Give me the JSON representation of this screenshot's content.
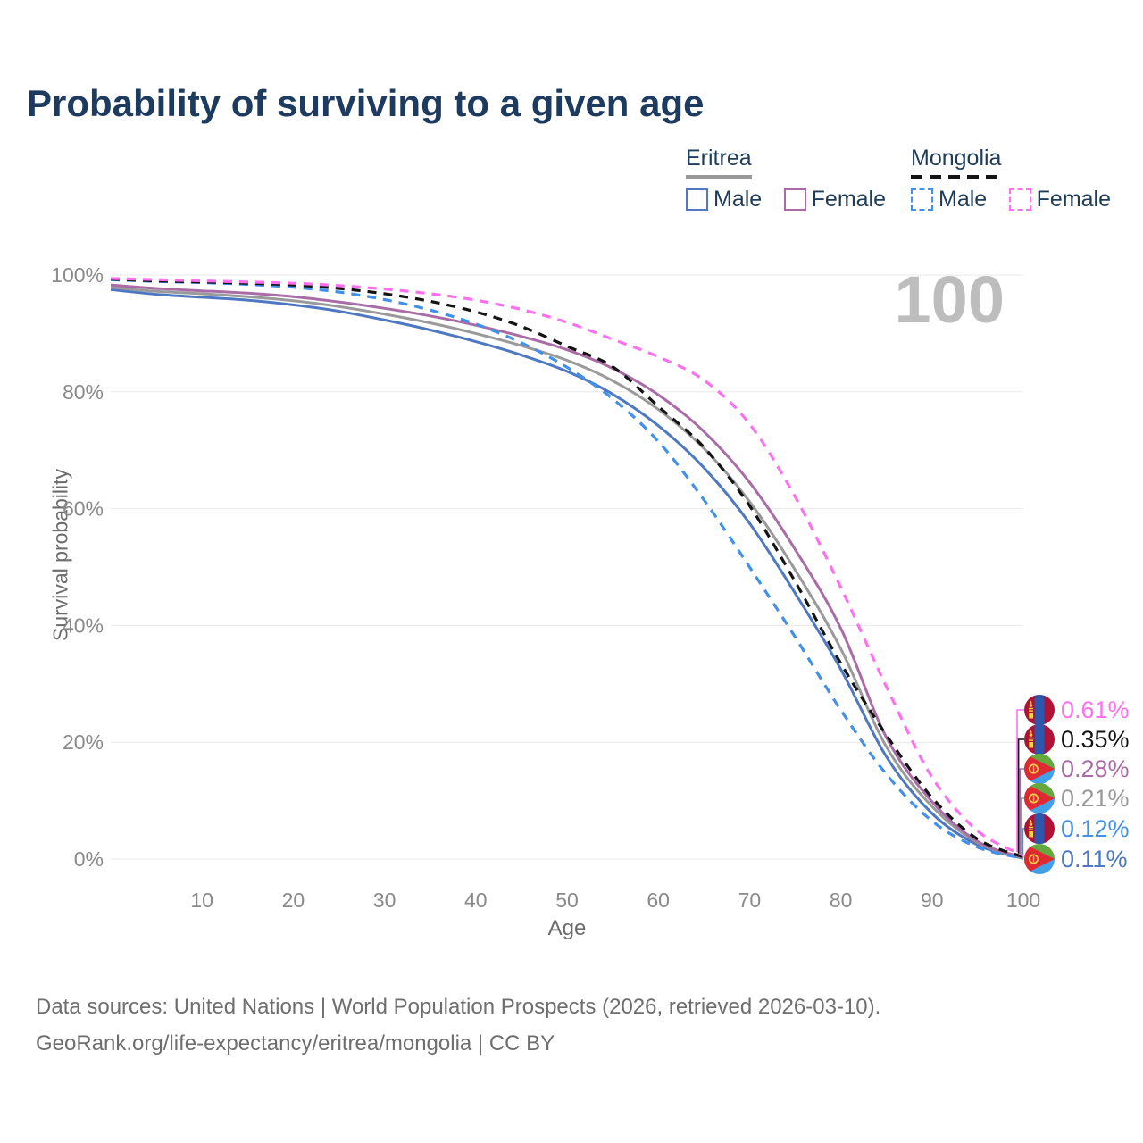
{
  "title": "Probability of surviving to a given age",
  "legend": {
    "groups": [
      {
        "label": "Eritrea",
        "line_style": "solid",
        "line_color": "#9a9a9a",
        "items": [
          {
            "label": "Male",
            "color": "#4e79c2",
            "dashed": false
          },
          {
            "label": "Female",
            "color": "#aa6ca6",
            "dashed": false
          }
        ]
      },
      {
        "label": "Mongolia",
        "line_style": "dashed",
        "line_color": "#141414",
        "items": [
          {
            "label": "Male",
            "color": "#4190ea",
            "dashed": true
          },
          {
            "label": "Female",
            "color": "#ff70f0",
            "dashed": true
          }
        ]
      }
    ]
  },
  "chart_data": {
    "type": "line",
    "title": "Probability of surviving to a given age",
    "xlabel": "Age",
    "ylabel": "Survival probability",
    "xlim": [
      0,
      100
    ],
    "ylim": [
      0,
      100
    ],
    "grid": true,
    "annotation": "100",
    "x_tick_values": [
      10,
      20,
      30,
      40,
      50,
      60,
      70,
      80,
      90,
      100
    ],
    "x_tick_labels": [
      "10",
      "20",
      "30",
      "40",
      "50",
      "60",
      "70",
      "80",
      "90",
      "100"
    ],
    "y_tick_values": [
      0,
      20,
      40,
      60,
      80,
      100
    ],
    "y_tick_labels": [
      "0%",
      "20%",
      "40%",
      "60%",
      "80%",
      "100%"
    ],
    "x": [
      0,
      5,
      10,
      15,
      20,
      25,
      30,
      35,
      40,
      45,
      50,
      55,
      60,
      65,
      70,
      75,
      80,
      85,
      90,
      95,
      100
    ],
    "series": [
      {
        "name": "Mongolia Female",
        "country": "Mongolia",
        "sex": "Female",
        "color": "#ff70f0",
        "dashed": true,
        "z": 6,
        "end_label": "0.61%",
        "values": [
          99.4,
          99.2,
          99.0,
          98.8,
          98.6,
          98.2,
          97.6,
          96.8,
          95.7,
          94.1,
          91.9,
          89.0,
          86.0,
          82.0,
          74.5,
          62.0,
          46.5,
          29.5,
          14.0,
          4.8,
          0.61
        ]
      },
      {
        "name": "Mongolia Both sexes",
        "country": "Mongolia",
        "sex": "Both",
        "color": "#141414",
        "dashed": true,
        "z": 5,
        "end_label": "0.35%",
        "values": [
          99.3,
          99.0,
          98.8,
          98.6,
          98.3,
          97.7,
          96.8,
          95.5,
          93.7,
          91.2,
          87.8,
          84.3,
          77.5,
          70.5,
          60.5,
          47.5,
          33.5,
          21.2,
          10.5,
          3.4,
          0.35
        ]
      },
      {
        "name": "Eritrea Female",
        "country": "Eritrea",
        "sex": "Female",
        "color": "#aa6ca6",
        "dashed": false,
        "z": 3,
        "end_label": "0.28%",
        "values": [
          98.3,
          97.7,
          97.3,
          96.9,
          96.3,
          95.4,
          94.3,
          93.0,
          91.4,
          89.5,
          87.2,
          84.0,
          79.5,
          73.2,
          64.5,
          53.0,
          39.5,
          20.8,
          9.8,
          3.0,
          0.28
        ]
      },
      {
        "name": "Eritrea Both sexes",
        "country": "Eritrea",
        "sex": "Both",
        "color": "#9a9a9a",
        "dashed": false,
        "z": 2,
        "end_label": "0.21%",
        "values": [
          97.9,
          97.2,
          96.8,
          96.3,
          95.6,
          94.6,
          93.3,
          91.8,
          90.0,
          87.9,
          85.4,
          81.9,
          77.0,
          70.3,
          61.2,
          49.5,
          36.0,
          19.2,
          9.0,
          2.8,
          0.21
        ]
      },
      {
        "name": "Mongolia Male",
        "country": "Mongolia",
        "sex": "Male",
        "color": "#4190ea",
        "dashed": true,
        "z": 4,
        "end_label": "0.12%",
        "values": [
          99.2,
          98.9,
          98.7,
          98.4,
          97.9,
          97.1,
          95.8,
          94.0,
          91.6,
          88.4,
          84.2,
          78.8,
          71.5,
          61.5,
          50.0,
          38.0,
          25.5,
          14.5,
          6.5,
          2.0,
          0.12
        ]
      },
      {
        "name": "Eritrea Male",
        "country": "Eritrea",
        "sex": "Male",
        "color": "#4e79c2",
        "dashed": false,
        "z": 1,
        "end_label": "0.11%",
        "values": [
          97.5,
          96.7,
          96.2,
          95.7,
          94.9,
          93.8,
          92.3,
          90.6,
          88.6,
          86.3,
          83.5,
          79.6,
          74.2,
          67.0,
          57.5,
          45.5,
          32.5,
          17.5,
          7.8,
          2.4,
          0.11
        ]
      }
    ]
  },
  "footer": {
    "line1": "Data sources: United Nations | World Population Prospects (2026, retrieved 2026-03-10).",
    "line2": "GeoRank.org/life-expectancy/eritrea/mongolia | CC BY"
  }
}
